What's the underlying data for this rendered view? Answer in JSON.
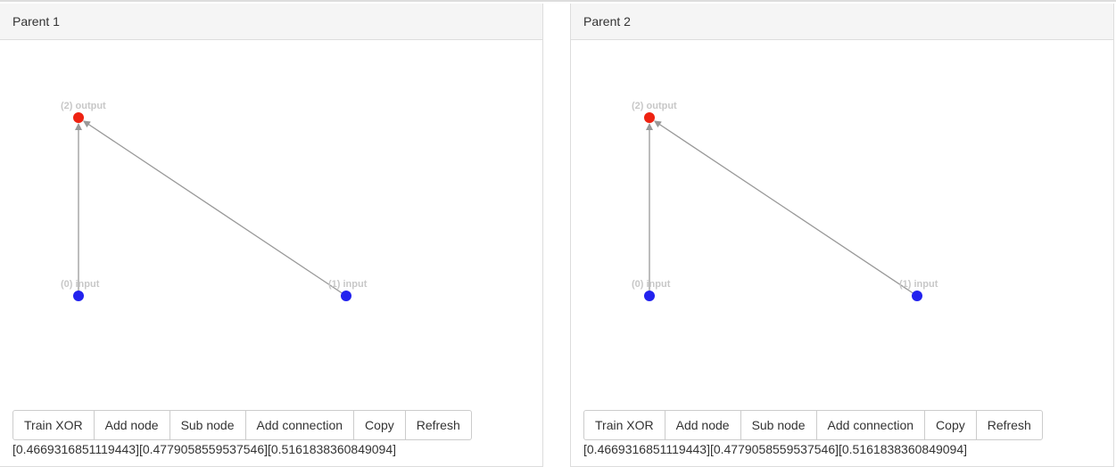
{
  "panels": [
    {
      "title": "Parent 1",
      "nodes": [
        {
          "label": "(0) input"
        },
        {
          "label": "(1) input"
        },
        {
          "label": "(2) output"
        }
      ],
      "buttons": [
        "Train XOR",
        "Add node",
        "Sub node",
        "Add connection",
        "Copy",
        "Refresh"
      ],
      "output": "[0.4669316851119443][0.4779058559537546][0.5161838360849094]"
    },
    {
      "title": "Parent 2",
      "nodes": [
        {
          "label": "(0) input"
        },
        {
          "label": "(1) input"
        },
        {
          "label": "(2) output"
        }
      ],
      "buttons": [
        "Train XOR",
        "Add node",
        "Sub node",
        "Add connection",
        "Copy",
        "Refresh"
      ],
      "output": "[0.4669316851119443][0.4779058559537546][0.5161838360849094]"
    }
  ]
}
